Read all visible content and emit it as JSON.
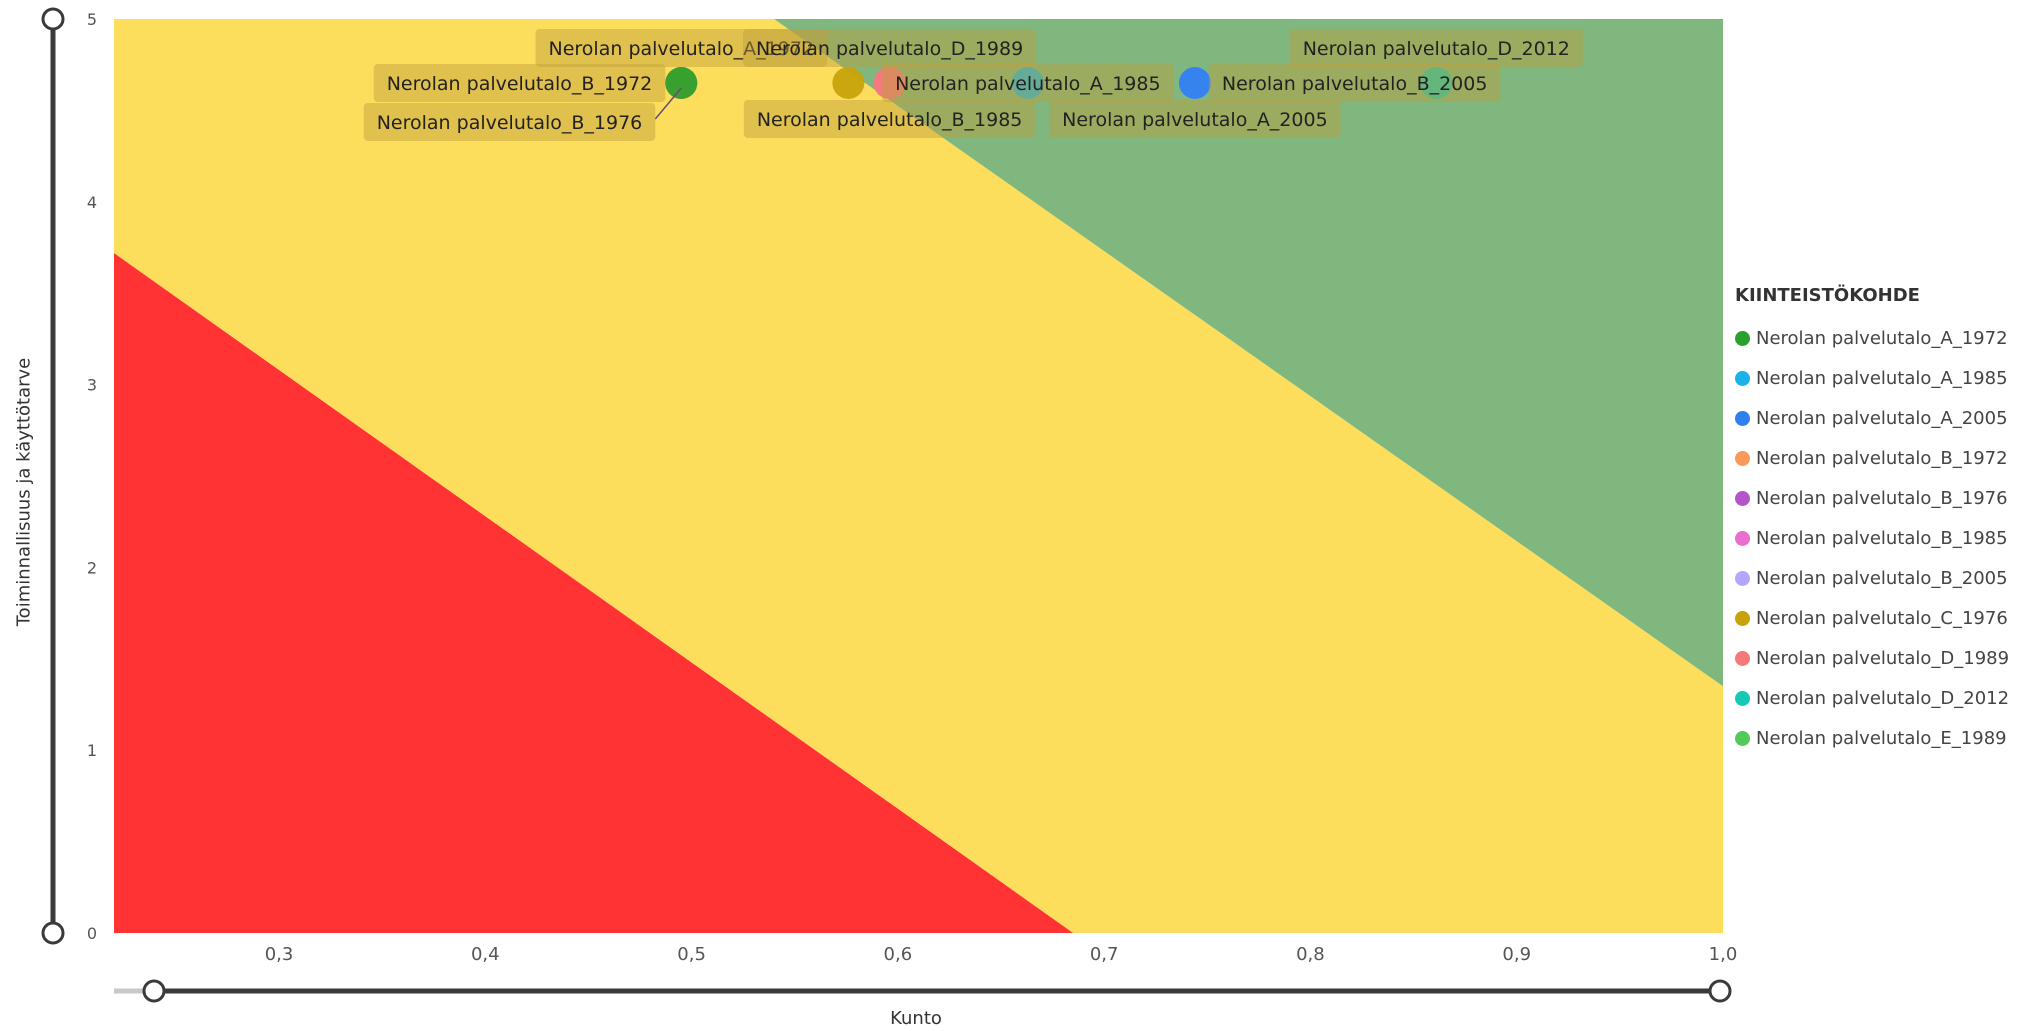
{
  "chart_data": {
    "type": "scatter",
    "xlabel": "Kunto",
    "ylabel": "Toiminnallisuus ja käyttötarve",
    "xlim": [
      0.22,
      1.0
    ],
    "ylim": [
      0,
      5
    ],
    "x_ticks": [
      "0,3",
      "0,4",
      "0,5",
      "0,6",
      "0,7",
      "0,8",
      "0,9",
      "1,0"
    ],
    "x_tick_values": [
      0.3,
      0.4,
      0.5,
      0.6,
      0.7,
      0.8,
      0.9,
      1.0
    ],
    "y_ticks": [
      "0",
      "1",
      "2",
      "3",
      "4",
      "5"
    ],
    "y_tick_values": [
      0,
      1,
      2,
      3,
      4,
      5
    ],
    "background_zones": [
      {
        "name": "red",
        "color": "#ff3333",
        "polygon": [
          [
            0.22,
            0
          ],
          [
            0.685,
            0
          ],
          [
            0.22,
            3.72
          ]
        ]
      },
      {
        "name": "yellow",
        "color": "#fddd5c",
        "polygon": [
          [
            0.685,
            0
          ],
          [
            1.0,
            0
          ],
          [
            1.0,
            1.35
          ],
          [
            0.54,
            5
          ],
          [
            0.22,
            5
          ],
          [
            0.22,
            3.72
          ]
        ]
      },
      {
        "name": "green",
        "color": "#7fb77e",
        "polygon": [
          [
            0.54,
            5
          ],
          [
            1.0,
            5
          ],
          [
            1.0,
            1.35
          ]
        ]
      }
    ],
    "legend_title": "KIINTEISTÖKOHDE",
    "legend_position": "right",
    "series": [
      {
        "name": "Nerolan palvelutalo_A_1972",
        "color": "#2ca02c"
      },
      {
        "name": "Nerolan palvelutalo_A_1985",
        "color": "#19b3e8"
      },
      {
        "name": "Nerolan palvelutalo_A_2005",
        "color": "#2f80ed"
      },
      {
        "name": "Nerolan palvelutalo_B_1972",
        "color": "#f79a5a"
      },
      {
        "name": "Nerolan palvelutalo_B_1976",
        "color": "#b456c8"
      },
      {
        "name": "Nerolan palvelutalo_B_1985",
        "color": "#e86ecf"
      },
      {
        "name": "Nerolan palvelutalo_B_2005",
        "color": "#b3a6ff"
      },
      {
        "name": "Nerolan palvelutalo_C_1976",
        "color": "#c8a20a"
      },
      {
        "name": "Nerolan palvelutalo_D_1989",
        "color": "#f47a7a"
      },
      {
        "name": "Nerolan palvelutalo_D_2012",
        "color": "#17c9b5"
      },
      {
        "name": "Nerolan palvelutalo_E_1989",
        "color": "#52c95a"
      }
    ],
    "points": [
      {
        "label": "Nerolan palvelutalo_B_1976",
        "x": 0.495,
        "y": 4.65,
        "color": "#b456c8",
        "label_pos": "bottom-left"
      },
      {
        "label": "Nerolan palvelutalo_B_1972",
        "x": 0.495,
        "y": 4.65,
        "color": "#f79a5a",
        "label_pos": "left"
      },
      {
        "label": "Nerolan palvelutalo_A_1972",
        "x": 0.495,
        "y": 4.65,
        "color": "#2ca02c",
        "label_pos": "top"
      },
      {
        "label": "Nerolan palvelutalo_C_1976",
        "x": 0.576,
        "y": 4.65,
        "color": "#c8a20a",
        "label_pos": "none"
      },
      {
        "label": "Nerolan palvelutalo_B_1985",
        "x": 0.596,
        "y": 4.65,
        "color": "#e86ecf",
        "label_pos": "bottom"
      },
      {
        "label": "Nerolan palvelutalo_D_1989",
        "x": 0.596,
        "y": 4.65,
        "color": "#f47a7a",
        "label_pos": "top"
      },
      {
        "label": "Nerolan palvelutalo_A_1985",
        "x": 0.663,
        "y": 4.65,
        "color": "#19b3e8",
        "label_pos": "center"
      },
      {
        "label": "Nerolan palvelutalo_B_2005",
        "x": 0.744,
        "y": 4.65,
        "color": "#b3a6ff",
        "label_pos": "right"
      },
      {
        "label": "Nerolan palvelutalo_A_2005",
        "x": 0.744,
        "y": 4.65,
        "color": "#2f80ed",
        "label_pos": "bottom"
      },
      {
        "label": "Nerolan palvelutalo_D_2012",
        "x": 0.861,
        "y": 4.65,
        "color": "#17c9b5",
        "label_pos": "top"
      }
    ],
    "grid": false
  }
}
